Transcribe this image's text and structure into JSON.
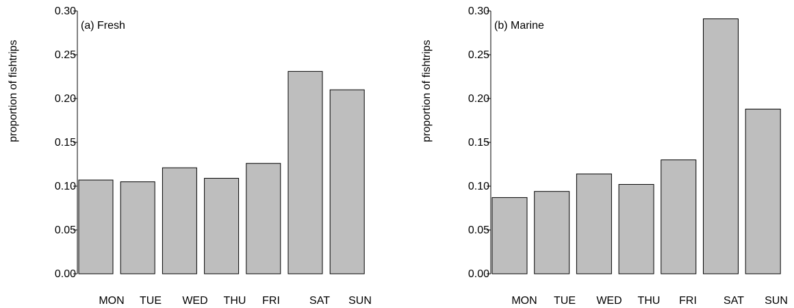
{
  "chart_data": [
    {
      "type": "bar",
      "title": "(a) Fresh",
      "ylabel": "proportion of fishtrips",
      "xlabel": "",
      "categories": [
        "MON",
        "TUE",
        "WED",
        "THU",
        "FRI",
        "SAT",
        "SUN"
      ],
      "values": [
        0.107,
        0.105,
        0.121,
        0.109,
        0.126,
        0.231,
        0.21
      ],
      "ylim": [
        0,
        0.3
      ],
      "yticks": [
        "0.00",
        "0.05",
        "0.10",
        "0.15",
        "0.20",
        "0.25",
        "0.30"
      ],
      "bar_color": "#bebebe",
      "grid": false
    },
    {
      "type": "bar",
      "title": "(b) Marine",
      "ylabel": "proportion of fishtrips",
      "xlabel": "",
      "categories": [
        "MON",
        "TUE",
        "WED",
        "THU",
        "FRI",
        "SAT",
        "SUN"
      ],
      "values": [
        0.087,
        0.094,
        0.114,
        0.102,
        0.13,
        0.291,
        0.188
      ],
      "ylim": [
        0,
        0.3
      ],
      "yticks": [
        "0.00",
        "0.05",
        "0.10",
        "0.15",
        "0.20",
        "0.25",
        "0.30"
      ],
      "bar_color": "#bebebe",
      "grid": false
    }
  ]
}
